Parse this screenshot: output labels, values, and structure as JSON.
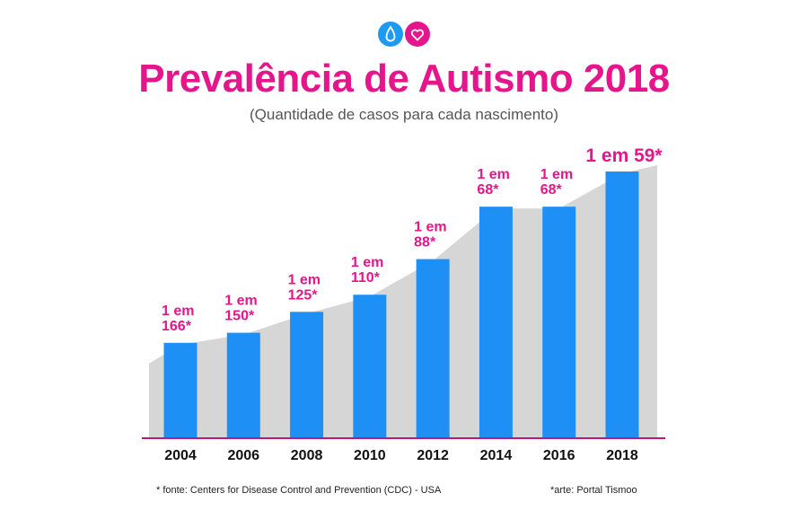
{
  "header": {
    "title": "Prevalência de Autismo 2018",
    "subtitle": "(Quantidade de casos para cada nascimento)"
  },
  "logo": {
    "icons": [
      "droplet-icon",
      "heart-icon"
    ],
    "colors": [
      "#1e9af0",
      "#e5168b"
    ]
  },
  "chart_data": {
    "type": "bar",
    "categories": [
      "2004",
      "2006",
      "2008",
      "2010",
      "2012",
      "2014",
      "2016",
      "2018"
    ],
    "data_labels": [
      [
        "1 em",
        "166*"
      ],
      [
        "1 em",
        "150*"
      ],
      [
        "1 em",
        "125*"
      ],
      [
        "1 em",
        "110*"
      ],
      [
        "1 em",
        "88*"
      ],
      [
        "1 em",
        "68*"
      ],
      [
        "1 em",
        "68*"
      ],
      [
        "1 em 59*"
      ]
    ],
    "values": [
      166,
      150,
      125,
      110,
      88,
      68,
      68,
      59
    ],
    "encoding": "bar height proportional to prevalence (1/N)",
    "bar_color": "#1e90f5",
    "label_color": "#e5168b",
    "background_area_color": "#d6d6d6",
    "axis_color": "#c2187a",
    "grid": false,
    "legend": "none"
  },
  "footer": {
    "source": "* fonte: Centers for Disease Control and Prevention (CDC) - USA",
    "credit": "*arte: Portal Tismoo"
  }
}
